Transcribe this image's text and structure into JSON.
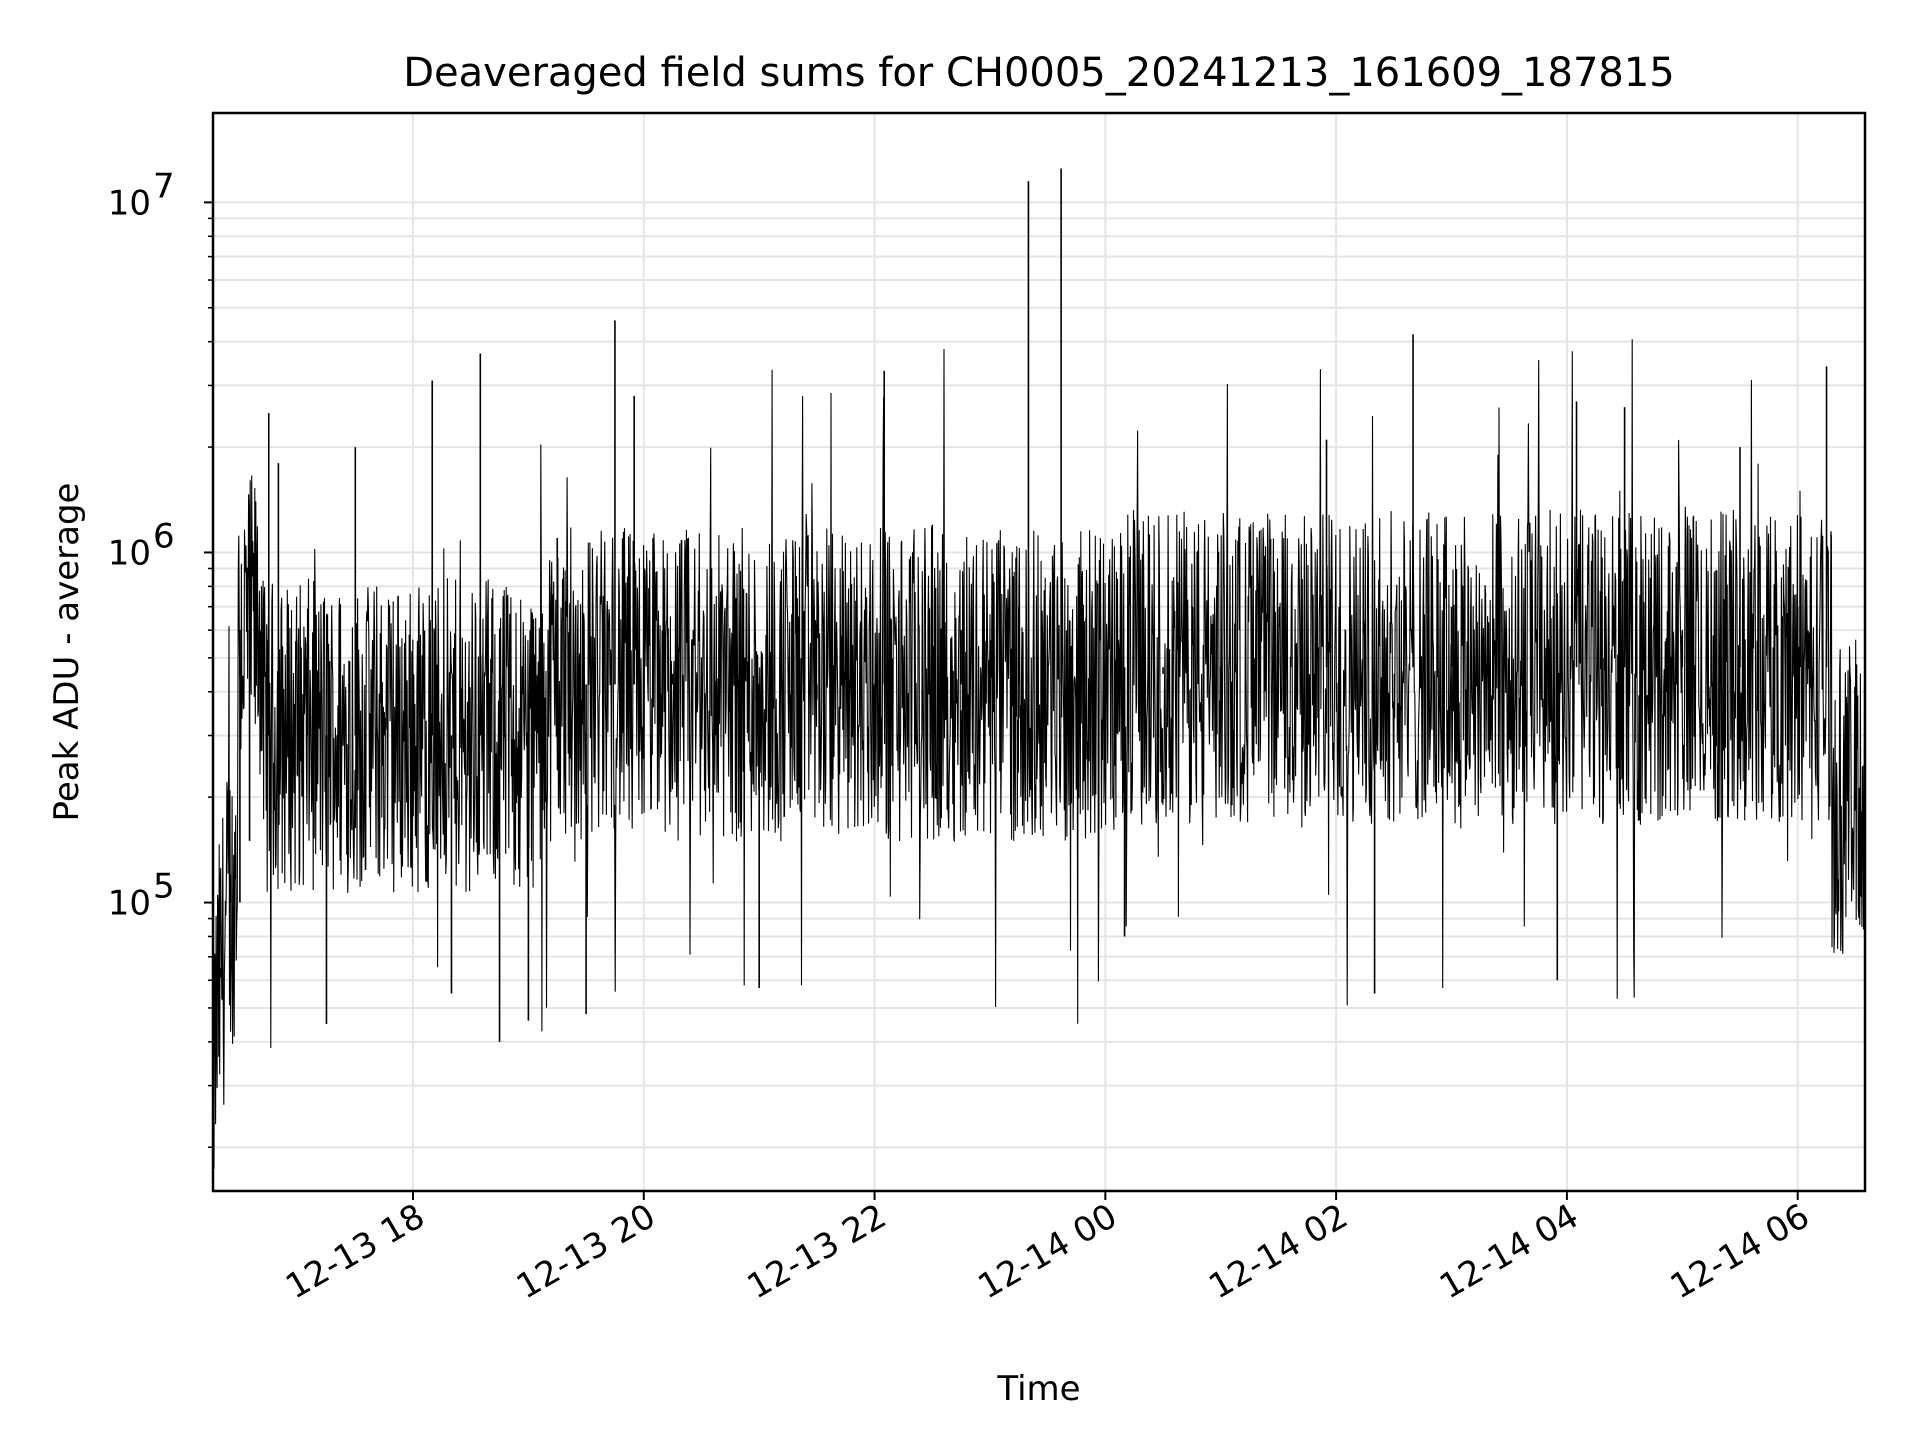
{
  "chart_data": {
    "type": "line",
    "title": "Deaveraged field sums for CH0005_20241213_161609_187815",
    "xlabel": "Time",
    "ylabel": "Peak ADU - average",
    "yscale": "log",
    "ylim": [
      15000,
      18000000
    ],
    "xlim": [
      "2024-12-13 16:16",
      "2024-12-14 06:35"
    ],
    "grid": true,
    "line_color": "#000000",
    "grid_color": "#e5e5e5",
    "x_ticks": [
      {
        "value": "2024-12-13 18:00",
        "label": "12-13 18"
      },
      {
        "value": "2024-12-13 20:00",
        "label": "12-13 20"
      },
      {
        "value": "2024-12-13 22:00",
        "label": "12-13 22"
      },
      {
        "value": "2024-12-14 00:00",
        "label": "12-14 00"
      },
      {
        "value": "2024-12-14 02:00",
        "label": "12-14 02"
      },
      {
        "value": "2024-12-14 04:00",
        "label": "12-14 04"
      },
      {
        "value": "2024-12-14 06:00",
        "label": "12-14 06"
      }
    ],
    "y_ticks": [
      {
        "value": 100000,
        "base": "10",
        "exp": "5"
      },
      {
        "value": 1000000,
        "base": "10",
        "exp": "6"
      },
      {
        "value": 10000000,
        "base": "10",
        "exp": "7"
      }
    ],
    "series": [
      {
        "values": [
          [
            "2024-12-13 16:16",
            30000
          ],
          [
            "2024-12-13 16:20",
            65000
          ],
          [
            "2024-12-13 16:25",
            120000
          ],
          [
            "2024-12-13 16:30",
            100000
          ],
          [
            "2024-12-13 16:35",
            150000
          ],
          [
            "2024-12-13 16:40",
            460000
          ],
          [
            "2024-12-13 16:45",
            2500000
          ],
          [
            "2024-12-13 16:50",
            1800000
          ],
          [
            "2024-12-13 16:55",
            600000
          ],
          [
            "2024-12-13 17:05",
            500000
          ],
          [
            "2024-12-13 17:15",
            45000
          ],
          [
            "2024-12-13 17:30",
            2000000
          ],
          [
            "2024-12-13 17:45",
            350000
          ],
          [
            "2024-12-13 18:00",
            400000
          ],
          [
            "2024-12-13 18:10",
            3100000
          ],
          [
            "2024-12-13 18:20",
            55000
          ],
          [
            "2024-12-13 18:35",
            3700000
          ],
          [
            "2024-12-13 18:45",
            40000
          ],
          [
            "2024-12-13 19:00",
            46000
          ],
          [
            "2024-12-13 19:15",
            1100000
          ],
          [
            "2024-12-13 19:30",
            48000
          ],
          [
            "2024-12-13 19:45",
            4600000
          ],
          [
            "2024-12-13 19:55",
            2800000
          ],
          [
            "2024-12-13 20:15",
            450000
          ],
          [
            "2024-12-13 20:45",
            350000
          ],
          [
            "2024-12-13 21:00",
            57000
          ],
          [
            "2024-12-13 21:30",
            380000
          ],
          [
            "2024-12-13 22:00",
            420000
          ],
          [
            "2024-12-13 22:05",
            3300000
          ],
          [
            "2024-12-13 22:30",
            1200000
          ],
          [
            "2024-12-13 22:45",
            600000
          ],
          [
            "2024-12-13 23:00",
            300000
          ],
          [
            "2024-12-13 23:15",
            700000
          ],
          [
            "2024-12-13 23:20",
            11500000
          ],
          [
            "2024-12-13 23:37",
            12500000
          ],
          [
            "2024-12-13 23:50",
            650000
          ],
          [
            "2024-12-14 00:10",
            80000
          ],
          [
            "2024-12-14 00:30",
            450000
          ],
          [
            "2024-12-14 01:00",
            380000
          ],
          [
            "2024-12-14 01:30",
            500000
          ],
          [
            "2024-12-14 01:55",
            2100000
          ],
          [
            "2024-12-14 02:20",
            55000
          ],
          [
            "2024-12-14 02:40",
            4200000
          ],
          [
            "2024-12-14 03:00",
            700000
          ],
          [
            "2024-12-14 03:30",
            500000
          ],
          [
            "2024-12-14 03:55",
            60000
          ],
          [
            "2024-12-14 04:05",
            2700000
          ],
          [
            "2024-12-14 04:30",
            2600000
          ],
          [
            "2024-12-14 05:00",
            600000
          ],
          [
            "2024-12-14 05:30",
            2000000
          ],
          [
            "2024-12-14 06:00",
            700000
          ],
          [
            "2024-12-14 06:15",
            3400000
          ],
          [
            "2024-12-14 06:25",
            150000
          ],
          [
            "2024-12-14 06:35",
            100000
          ]
        ]
      }
    ]
  }
}
